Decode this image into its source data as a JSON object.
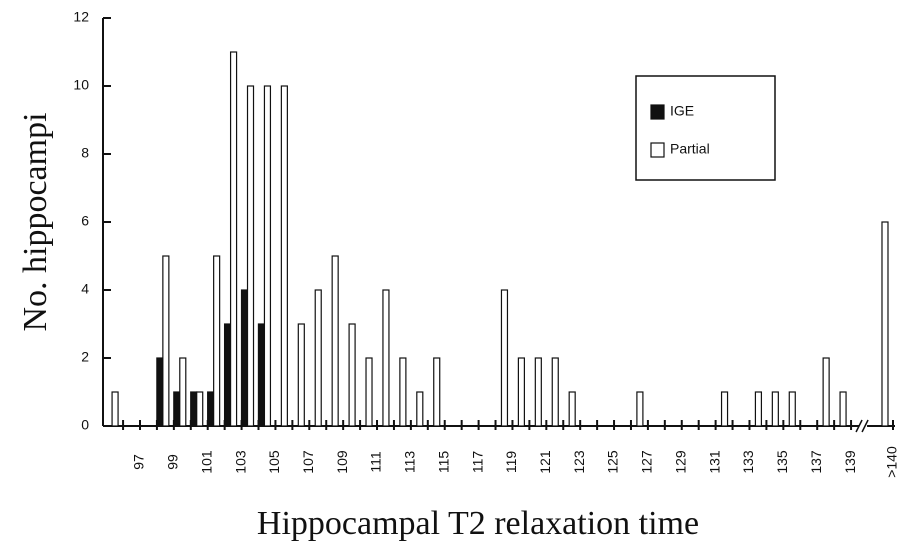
{
  "chart_data": {
    "type": "bar",
    "xlabel": "Hippocampal T2 relaxation time",
    "ylabel": "No. hippocampi",
    "categories": [
      null,
      "97",
      null,
      "99",
      null,
      "101",
      null,
      "103",
      null,
      "105",
      null,
      "107",
      null,
      "109",
      null,
      "111",
      null,
      "113",
      null,
      "115",
      null,
      "117",
      null,
      "119",
      null,
      "121",
      null,
      "123",
      null,
      "125",
      null,
      "127",
      null,
      "129",
      null,
      "131",
      null,
      "133",
      null,
      "135",
      null,
      "137",
      null,
      "139",
      ">140"
    ],
    "series": [
      {
        "name": "IGE",
        "color": "#111111",
        "values": [
          0,
          0,
          0,
          2,
          1,
          1,
          1,
          3,
          4,
          3,
          0,
          0,
          0,
          0,
          0,
          0,
          0,
          0,
          0,
          0,
          0,
          0,
          0,
          0,
          0,
          0,
          0,
          0,
          0,
          0,
          0,
          0,
          0,
          0,
          0,
          0,
          0,
          0,
          0,
          0,
          0,
          0,
          0,
          0,
          0
        ]
      },
      {
        "name": "Partial",
        "color": "#ffffff",
        "values": [
          1,
          0,
          0,
          5,
          2,
          1,
          5,
          11,
          10,
          10,
          10,
          3,
          4,
          5,
          3,
          2,
          4,
          2,
          1,
          2,
          0,
          0,
          0,
          4,
          2,
          2,
          2,
          1,
          0,
          0,
          0,
          1,
          0,
          0,
          0,
          0,
          1,
          0,
          1,
          1,
          1,
          0,
          2,
          1,
          6
        ]
      }
    ],
    "ylim": [
      0,
      12
    ],
    "yticks": [
      0,
      2,
      4,
      6,
      8,
      10,
      12
    ],
    "legend": "upper right",
    "axis_break": true
  }
}
